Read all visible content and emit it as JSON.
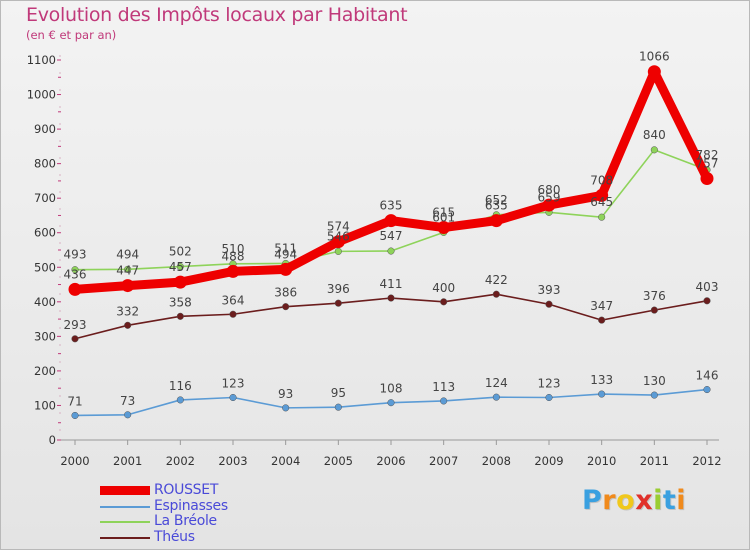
{
  "chart_data": {
    "type": "line",
    "title": "Evolution des Impôts locaux par Habitant",
    "subtitle": "(en € et par an)",
    "xlabel": "",
    "ylabel": "",
    "x": [
      "2000",
      "2001",
      "2002",
      "2003",
      "2004",
      "2005",
      "2006",
      "2007",
      "2008",
      "2009",
      "2010",
      "2011",
      "2012"
    ],
    "ylim": [
      0,
      1100
    ],
    "yticks": [
      0,
      100,
      200,
      300,
      400,
      500,
      600,
      700,
      800,
      900,
      1000,
      1100
    ],
    "grid": false,
    "series": [
      {
        "name": "ROUSSET",
        "color": "#ee0000",
        "values": [
          436,
          447,
          457,
          488,
          494,
          574,
          635,
          615,
          635,
          680,
          708,
          1066,
          757
        ]
      },
      {
        "name": "Espinasses",
        "color": "#5b9bd5",
        "values": [
          71,
          73,
          116,
          123,
          93,
          95,
          108,
          113,
          124,
          123,
          133,
          130,
          146
        ]
      },
      {
        "name": "La Bréole",
        "color": "#8ed35a",
        "values": [
          493,
          494,
          502,
          510,
          511,
          546,
          547,
          601,
          652,
          659,
          645,
          840,
          782
        ]
      },
      {
        "name": "Théus",
        "color": "#6b1d1d",
        "values": [
          293,
          332,
          358,
          364,
          386,
          396,
          411,
          400,
          422,
          393,
          347,
          376,
          403
        ]
      }
    ],
    "legend_position": "bottom-left"
  },
  "logo": {
    "letters": [
      "P",
      "r",
      "o",
      "x",
      "i",
      "t",
      "i"
    ],
    "colors": [
      "#3aa0e0",
      "#f08a1c",
      "#f0c81c",
      "#e0302a",
      "#9acd32",
      "#3aa0e0",
      "#f08a1c"
    ]
  }
}
